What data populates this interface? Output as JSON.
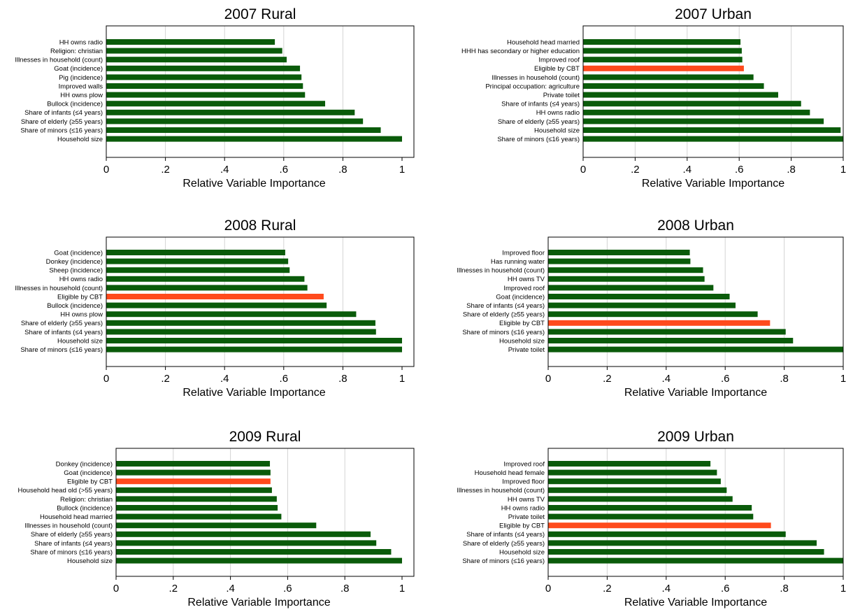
{
  "figure": {
    "colors": {
      "default_bar": "#0a5b0a",
      "highlight_bar": "#ff4a1c",
      "grid": "#d4d4d4"
    },
    "highlight_label": "Eligible by CBT",
    "xlabel": "Relative Variable Importance",
    "x_ticks": [
      {
        "value": 0,
        "label": "0"
      },
      {
        "value": 0.2,
        "label": ".2"
      },
      {
        "value": 0.4,
        "label": ".4"
      },
      {
        "value": 0.6,
        "label": ".6"
      },
      {
        "value": 0.8,
        "label": ".8"
      },
      {
        "value": 1,
        "label": "1"
      }
    ]
  },
  "chart_data": [
    {
      "type": "bar",
      "orientation": "horizontal",
      "title": "2007 Rural",
      "xlabel": "Relative Variable Importance",
      "xlim": [
        0,
        1
      ],
      "grid": "vertical",
      "categories": [
        "HH owns radio",
        "Religion: christian",
        "Illnesses in household (count)",
        "Goat (incidence)",
        "Pig (incidence)",
        "Improved walls",
        "HH owns plow",
        "Bullock (incidence)",
        "Share of infants (≤4 years)",
        "Share of elderly (≥55 years)",
        "Share of minors (≤16 years)",
        "Household size"
      ],
      "values": [
        0.57,
        0.595,
        0.61,
        0.655,
        0.66,
        0.665,
        0.672,
        0.74,
        0.84,
        0.868,
        0.928,
        1.0
      ]
    },
    {
      "type": "bar",
      "orientation": "horizontal",
      "title": "2007 Urban",
      "xlabel": "Relative Variable Importance",
      "xlim": [
        0,
        1
      ],
      "grid": "vertical",
      "categories": [
        "Household head married",
        "HHH has secondary or higher education",
        "Improved roof",
        "Eligible by CBT",
        "Illnesses in household (count)",
        "Principal occupation: agriculture",
        "Private toilet",
        "Share of infants (≤4 years)",
        "HH owns radio",
        "Share of elderly (≥55 years)",
        "Household size",
        "Share of minors (≤16 years)"
      ],
      "values": [
        0.605,
        0.61,
        0.612,
        0.618,
        0.655,
        0.695,
        0.75,
        0.838,
        0.872,
        0.925,
        0.99,
        1.0
      ]
    },
    {
      "type": "bar",
      "orientation": "horizontal",
      "title": "2008 Rural",
      "xlabel": "Relative Variable Importance",
      "xlim": [
        0,
        1
      ],
      "grid": "vertical",
      "categories": [
        "Goat (incidence)",
        "Donkey (incidence)",
        "Sheep (incidence)",
        "HH owns radio",
        "Illnesses in household (count)",
        "Eligible by CBT",
        "Bullock (incidence)",
        "HH owns plow",
        "Share of elderly (≥55 years)",
        "Share of infants (≤4 years)",
        "Household size",
        "Share of minors (≤16 years)"
      ],
      "values": [
        0.605,
        0.615,
        0.62,
        0.67,
        0.68,
        0.735,
        0.745,
        0.845,
        0.91,
        0.912,
        1.0,
        1.0
      ]
    },
    {
      "type": "bar",
      "orientation": "horizontal",
      "title": "2008 Urban",
      "xlabel": "Relative Variable Importance",
      "xlim": [
        0,
        1
      ],
      "grid": "vertical",
      "categories": [
        "Improved floor",
        "Has running water",
        "Illnesses in household (count)",
        "HH owns TV",
        "Improved roof",
        "Goat (incidence)",
        "Share of infants (≤4 years)",
        "Share of elderly (≥55 years)",
        "Eligible by CBT",
        "Share of minors (≤16 years)",
        "Household size",
        "Private toilet"
      ],
      "values": [
        0.48,
        0.482,
        0.525,
        0.53,
        0.56,
        0.615,
        0.635,
        0.71,
        0.752,
        0.805,
        0.83,
        1.0
      ]
    },
    {
      "type": "bar",
      "orientation": "horizontal",
      "title": "2009 Rural",
      "xlabel": "Relative Variable Importance",
      "xlim": [
        0,
        1
      ],
      "grid": "vertical",
      "categories": [
        "Donkey (incidence)",
        "Goat (incidence)",
        "Eligible by CBT",
        "Household head old (>55 years)",
        "Religion: christian",
        "Bullock (incidence)",
        "Household head married",
        "Illnesses in household (count)",
        "Share of elderly (≥55 years)",
        "Share of infants (≤4 years)",
        "Share of minors (≤16 years)",
        "Household size"
      ],
      "values": [
        0.538,
        0.54,
        0.54,
        0.545,
        0.562,
        0.565,
        0.578,
        0.7,
        0.89,
        0.91,
        0.962,
        1.0
      ]
    },
    {
      "type": "bar",
      "orientation": "horizontal",
      "title": "2009 Urban",
      "xlabel": "Relative Variable Importance",
      "xlim": [
        0,
        1
      ],
      "grid": "vertical",
      "categories": [
        "Improved roof",
        "Household head female",
        "Improved floor",
        "Illnesses in household (count)",
        "HH owns TV",
        "HH owns radio",
        "Private toilet",
        "Eligible by CBT",
        "Share of infants (≤4 years)",
        "Share of elderly (≥55 years)",
        "Household size",
        "Share of minors (≤16 years)"
      ],
      "values": [
        0.55,
        0.572,
        0.585,
        0.605,
        0.625,
        0.69,
        0.695,
        0.755,
        0.805,
        0.91,
        0.935,
        1.0
      ]
    }
  ]
}
